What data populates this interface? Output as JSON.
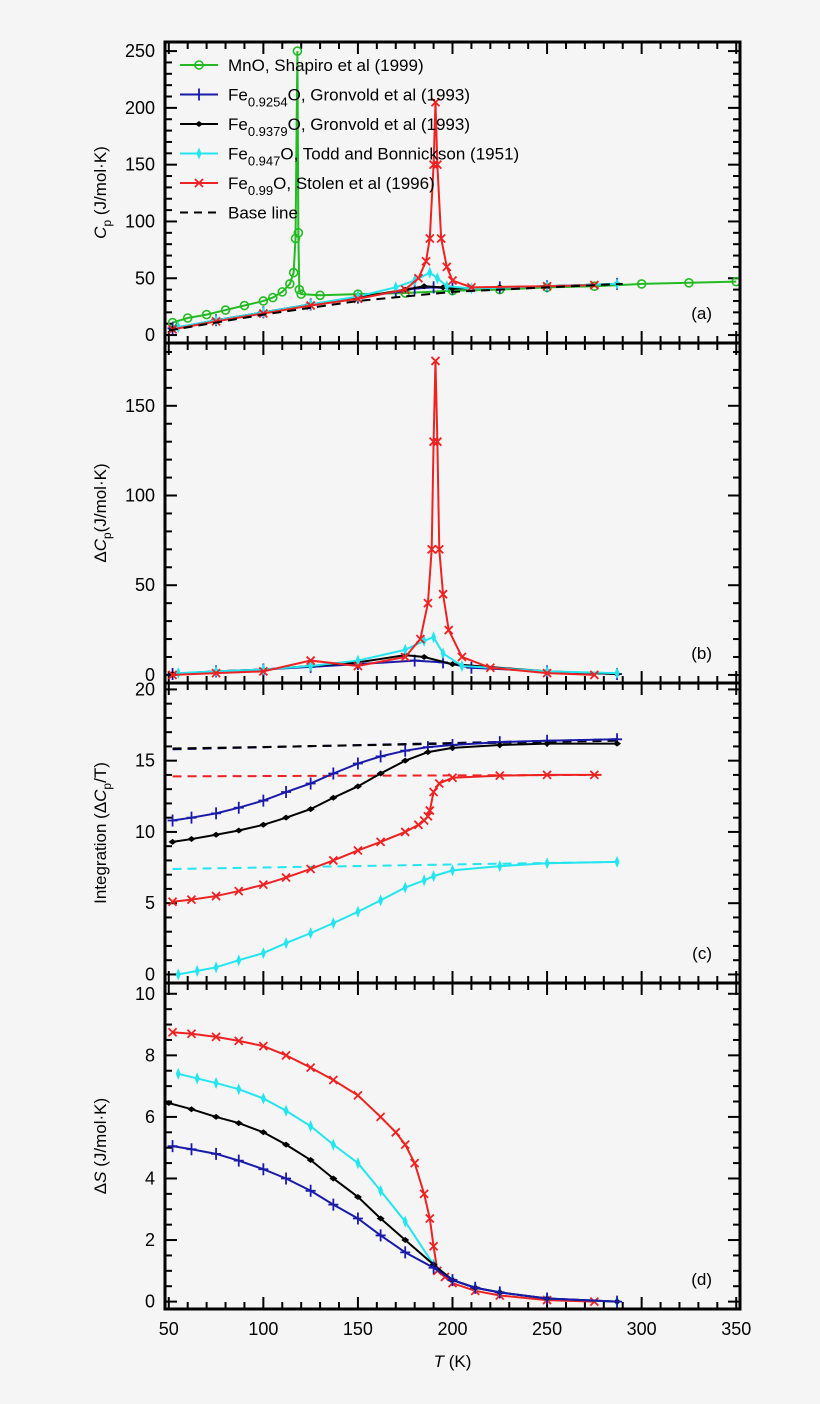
{
  "chart_data": {
    "type": "line",
    "x_label": {
      "main": "T",
      "unit": " (K)"
    },
    "xlim": [
      48,
      352
    ],
    "x_ticks": [
      50,
      100,
      150,
      200,
      250,
      300,
      350
    ],
    "panels": [
      {
        "tag": "(a)",
        "y_label": {
          "pre": "",
          "main": "C",
          "sub": "p",
          "post": " (J/mol·K)"
        },
        "ylim": [
          -7,
          258
        ],
        "y_ticks": [
          0,
          50,
          100,
          150,
          200,
          250
        ],
        "minor": 10,
        "legend": "top-left",
        "series": [
          {
            "key": "mno",
            "name_parts": [
              "MnO, Shapiro et al (1999)",
              "",
              ""
            ],
            "color": "#22bb22",
            "marker": "circle",
            "dash": false,
            "x": [
              52,
              60,
              70,
              80,
              90,
              100,
              105,
              110,
              114,
              116,
              117,
              118,
              118.5,
              119,
              120,
              130,
              150,
              175,
              200,
              225,
              250,
              275,
              300,
              325,
              350
            ],
            "y": [
              11,
              15,
              18,
              22,
              26,
              30,
              33,
              38,
              45,
              55,
              85,
              250,
              90,
              40,
              36,
              35,
              36,
              37,
              39,
              40,
              42,
              43,
              45,
              46,
              47
            ]
          },
          {
            "key": "fe9254",
            "name_parts": [
              "Fe",
              "0.9254",
              "O, Gronvold et al (1993)"
            ],
            "color": "#1a1aaa",
            "marker": "plus",
            "dash": false,
            "x": [
              52,
              75,
              100,
              125,
              150,
              170,
              180,
              190,
              200,
              225,
              250,
              287
            ],
            "y": [
              6,
              13,
              20,
              27,
              33,
              38,
              41,
              42,
              41,
              42,
              43,
              45
            ]
          },
          {
            "key": "fe9379",
            "name_parts": [
              "Fe",
              "0.9379",
              "O, Gronvold et al (1993)"
            ],
            "color": "#000000",
            "marker": "diamond",
            "dash": false,
            "x": [
              52,
              75,
              100,
              125,
              150,
              175,
              185,
              195,
              200,
              225,
              250,
              287
            ],
            "y": [
              5,
              13,
              20,
              27,
              33,
              40,
              43,
              42,
              41,
              42,
              43,
              45
            ]
          },
          {
            "key": "fe947",
            "name_parts": [
              "Fe",
              "0.947",
              "O, Todd and Bonnickson (1951)"
            ],
            "color": "#22e5f0",
            "marker": "thin-diamond",
            "dash": false,
            "x": [
              55,
              75,
              100,
              125,
              150,
              170,
              180,
              188,
              192,
              197,
              210,
              250,
              287
            ],
            "y": [
              7,
              13,
              20,
              27,
              34,
              42,
              48,
              55,
              50,
              43,
              41,
              43,
              45
            ]
          },
          {
            "key": "fe99",
            "name_parts": [
              "Fe",
              "0.99",
              "O, Stolen et al (1996)"
            ],
            "color": "#ee2222",
            "marker": "cross",
            "dash": false,
            "x": [
              52,
              75,
              100,
              125,
              150,
              175,
              182,
              186,
              188,
              190,
              191,
              192,
              194,
              197,
              200,
              210,
              250,
              275
            ],
            "y": [
              5,
              12,
              19,
              26,
              32,
              40,
              50,
              65,
              85,
              150,
              205,
              150,
              85,
              60,
              48,
              42,
              43,
              44
            ]
          },
          {
            "key": "base",
            "name_parts": [
              "Base line",
              "",
              ""
            ],
            "color": "#000000",
            "marker": "none",
            "dash": true,
            "x": [
              50,
              100,
              150,
              200,
              250,
              290
            ],
            "y": [
              4,
              18,
              30,
              38,
              42,
              45
            ]
          }
        ]
      },
      {
        "tag": "(b)",
        "y_label": {
          "pre": "Δ",
          "main": "C",
          "sub": "p",
          "post": "(J/mol·K)"
        },
        "ylim": [
          -4.5,
          185
        ],
        "y_ticks": [
          0,
          50,
          100,
          150
        ],
        "minor": 10,
        "series": [
          {
            "key": "fe9254",
            "color": "#1a1aaa",
            "marker": "plus",
            "x": [
              52,
              75,
              100,
              125,
              150,
              180,
              195,
              210,
              250,
              287
            ],
            "y": [
              0.5,
              2,
              3,
              4.5,
              6,
              8,
              7,
              4,
              2,
              0.5
            ]
          },
          {
            "key": "fe9379",
            "color": "#000000",
            "marker": "diamond",
            "x": [
              52,
              75,
              100,
              125,
              150,
              175,
              185,
              200,
              250,
              287
            ],
            "y": [
              0.5,
              2,
              3,
              5,
              7,
              11,
              10,
              6,
              2,
              0.5
            ]
          },
          {
            "key": "fe947",
            "color": "#22e5f0",
            "marker": "thin-diamond",
            "x": [
              55,
              75,
              100,
              125,
              150,
              175,
              185,
              190,
              195,
              205,
              250,
              287
            ],
            "y": [
              1,
              2,
              3,
              5,
              8,
              14,
              19,
              21,
              12,
              5,
              2,
              1
            ]
          },
          {
            "key": "fe99",
            "color": "#ee2222",
            "marker": "cross",
            "x": [
              52,
              75,
              100,
              125,
              150,
              175,
              183,
              187,
              189,
              190,
              191,
              192,
              193,
              195,
              198,
              205,
              220,
              250,
              275
            ],
            "y": [
              0,
              1,
              2,
              8,
              5,
              10,
              20,
              40,
              70,
              130,
              175,
              130,
              70,
              45,
              25,
              10,
              4,
              1,
              0
            ]
          }
        ]
      },
      {
        "tag": "(c)",
        "y_label": {
          "pre": "Integration (Δ",
          "main": "C",
          "sub": "p",
          "post": "/T)"
        },
        "ylim": [
          -0.6,
          20.45
        ],
        "y_ticks": [
          0,
          5,
          10,
          15,
          20
        ],
        "minor": 1,
        "series": [
          {
            "key": "fe9254-base",
            "color": "#000066",
            "marker": "none",
            "dash": true,
            "x": [
              52,
              287
            ],
            "y": [
              15.8,
              16.5
            ]
          },
          {
            "key": "fe9379-base",
            "color": "#000000",
            "marker": "none",
            "dash": true,
            "x": [
              52,
              287
            ],
            "y": [
              15.85,
              16.4
            ]
          },
          {
            "key": "fe99-base",
            "color": "#ee2222",
            "marker": "none",
            "dash": true,
            "x": [
              52,
              280
            ],
            "y": [
              13.9,
              14.0
            ]
          },
          {
            "key": "fe947-base",
            "color": "#22e5f0",
            "marker": "none",
            "dash": true,
            "x": [
              52,
              287
            ],
            "y": [
              7.4,
              7.9
            ]
          },
          {
            "key": "fe9254",
            "color": "#1a1aaa",
            "marker": "plus",
            "x": [
              52,
              62,
              75,
              87,
              100,
              112,
              125,
              137,
              150,
              162,
              175,
              187,
              200,
              225,
              250,
              287
            ],
            "y": [
              10.8,
              11.0,
              11.3,
              11.7,
              12.2,
              12.8,
              13.4,
              14.1,
              14.8,
              15.3,
              15.7,
              15.95,
              16.1,
              16.3,
              16.4,
              16.5
            ]
          },
          {
            "key": "fe9379",
            "color": "#000000",
            "marker": "diamond",
            "x": [
              52,
              62,
              75,
              87,
              100,
              112,
              125,
              137,
              150,
              162,
              175,
              187,
              200,
              225,
              250,
              287
            ],
            "y": [
              9.3,
              9.5,
              9.8,
              10.1,
              10.5,
              11.0,
              11.6,
              12.4,
              13.2,
              14.1,
              15.0,
              15.6,
              15.9,
              16.1,
              16.2,
              16.2
            ]
          },
          {
            "key": "fe99",
            "color": "#ee2222",
            "marker": "cross",
            "x": [
              52,
              62,
              75,
              87,
              100,
              112,
              125,
              137,
              150,
              162,
              175,
              182,
              185,
              187,
              188,
              190,
              193,
              200,
              225,
              250,
              275
            ],
            "y": [
              5.1,
              5.25,
              5.5,
              5.85,
              6.3,
              6.8,
              7.4,
              8.0,
              8.7,
              9.3,
              10.0,
              10.5,
              10.8,
              11.1,
              11.5,
              12.8,
              13.4,
              13.8,
              13.95,
              14.0,
              14.0
            ]
          },
          {
            "key": "fe947",
            "color": "#22e5f0",
            "marker": "thin-diamond",
            "x": [
              55,
              65,
              75,
              87,
              100,
              112,
              125,
              137,
              150,
              162,
              175,
              185,
              190,
              200,
              225,
              250,
              287
            ],
            "y": [
              0,
              0.25,
              0.5,
              1.0,
              1.5,
              2.2,
              2.9,
              3.6,
              4.4,
              5.2,
              6.1,
              6.6,
              6.9,
              7.3,
              7.6,
              7.8,
              7.9
            ]
          }
        ]
      },
      {
        "tag": "(d)",
        "y_label": {
          "pre": "Δ",
          "main": "S",
          "sub": "",
          "post": " (J/mol·K)"
        },
        "ylim": [
          -0.24,
          10.35
        ],
        "y_ticks": [
          0,
          2,
          4,
          6,
          8,
          10
        ],
        "minor": 0.5,
        "series": [
          {
            "key": "fe99",
            "color": "#ee2222",
            "marker": "cross",
            "x": [
              52,
              62,
              75,
              87,
              100,
              112,
              125,
              137,
              150,
              162,
              170,
              175,
              180,
              185,
              188,
              190,
              192,
              196,
              200,
              212,
              225,
              250,
              275
            ],
            "y": [
              8.75,
              8.7,
              8.6,
              8.47,
              8.3,
              8.0,
              7.6,
              7.2,
              6.7,
              6.0,
              5.5,
              5.1,
              4.5,
              3.5,
              2.7,
              1.8,
              1.0,
              0.8,
              0.6,
              0.35,
              0.2,
              0.05,
              0
            ]
          },
          {
            "key": "fe947",
            "color": "#22e5f0",
            "marker": "thin-diamond",
            "x": [
              55,
              65,
              75,
              87,
              100,
              112,
              125,
              137,
              150,
              162,
              175,
              190,
              200,
              212,
              225,
              250,
              287
            ],
            "y": [
              7.4,
              7.25,
              7.1,
              6.9,
              6.6,
              6.2,
              5.7,
              5.1,
              4.5,
              3.6,
              2.6,
              1.2,
              0.7,
              0.45,
              0.3,
              0.1,
              0
            ]
          },
          {
            "key": "fe9379",
            "color": "#000000",
            "marker": "diamond",
            "x": [
              50,
              62,
              75,
              87,
              100,
              112,
              125,
              137,
              150,
              162,
              175,
              190,
              200,
              212,
              225,
              250,
              287
            ],
            "y": [
              6.45,
              6.25,
              6.0,
              5.8,
              5.5,
              5.1,
              4.6,
              4.0,
              3.4,
              2.7,
              2.0,
              1.2,
              0.7,
              0.45,
              0.3,
              0.1,
              0
            ]
          },
          {
            "key": "fe9254",
            "color": "#1a1aaa",
            "marker": "plus",
            "x": [
              52,
              62,
              75,
              87,
              100,
              112,
              125,
              137,
              150,
              162,
              175,
              190,
              200,
              212,
              225,
              250,
              287
            ],
            "y": [
              5.05,
              4.95,
              4.8,
              4.58,
              4.3,
              4.0,
              3.6,
              3.15,
              2.7,
              2.15,
              1.6,
              1.1,
              0.7,
              0.45,
              0.3,
              0.1,
              0
            ]
          }
        ]
      }
    ]
  }
}
